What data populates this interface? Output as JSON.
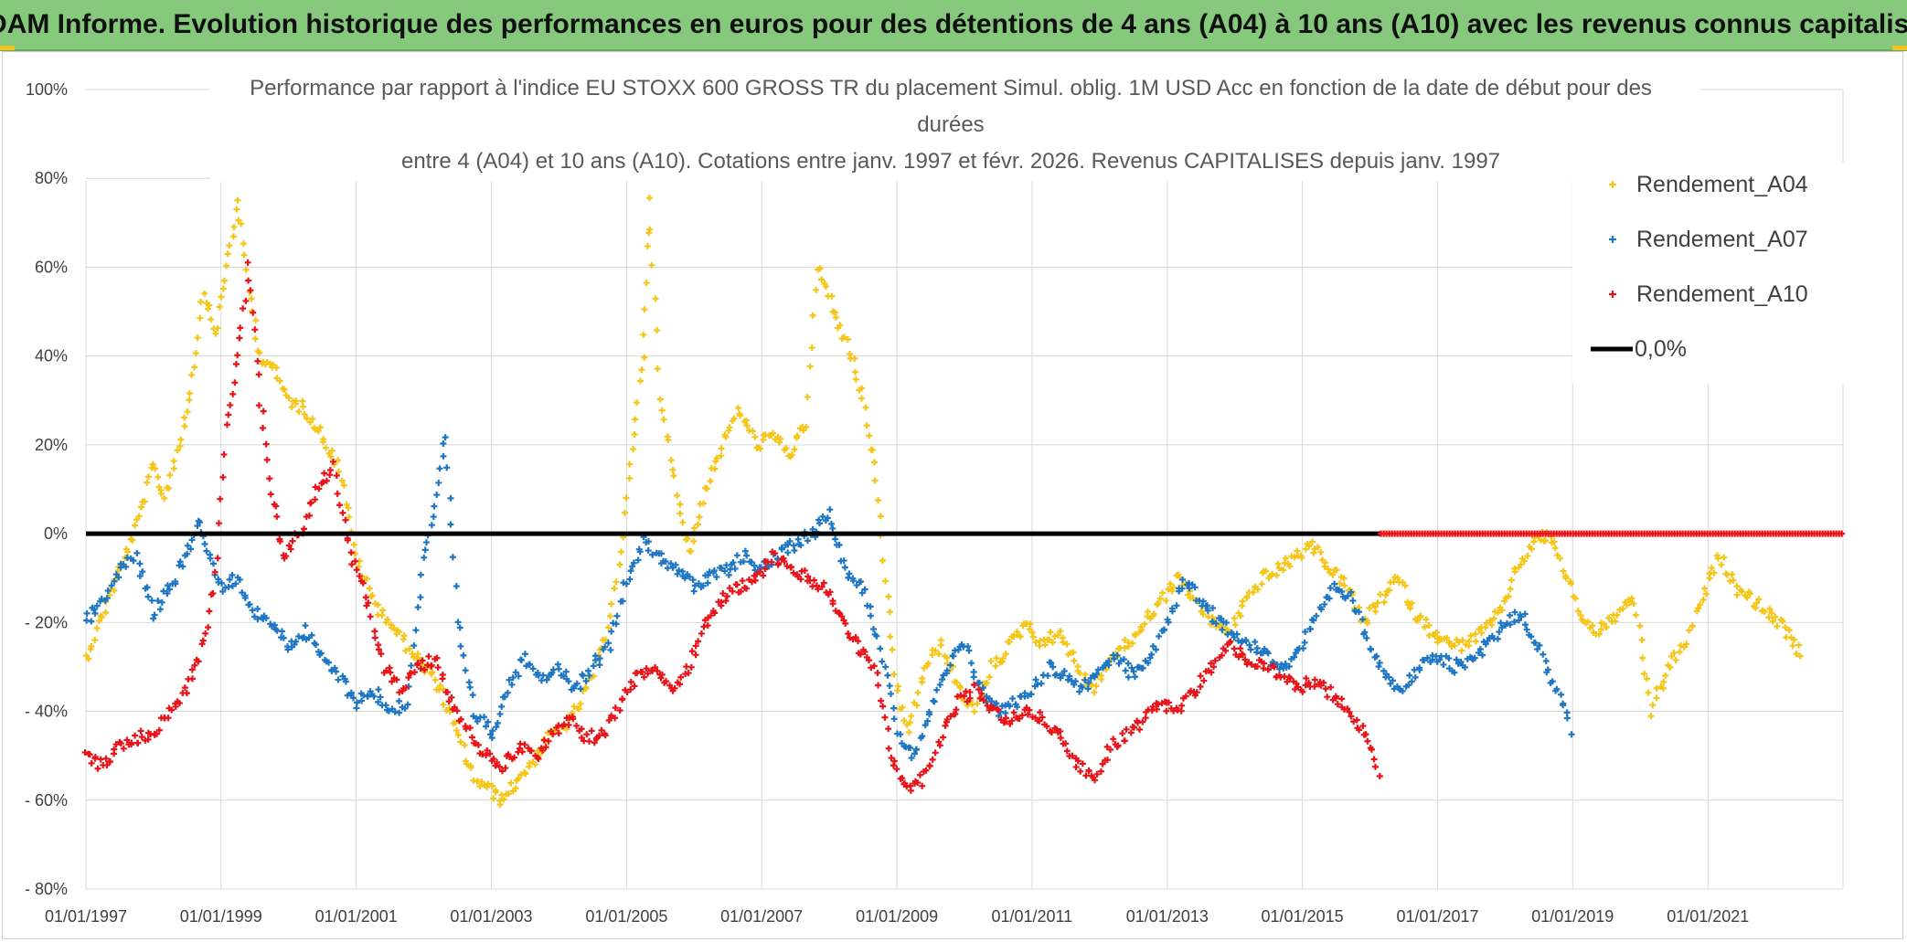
{
  "header": {
    "title": "ADAM Informe. Evolution historique des performances en euros pour des détentions de 4 ans (A04) à 10 ans (A10) avec les revenus connus capitalisés"
  },
  "colors": {
    "header_bg": "#86c97d",
    "a04": "#f5c518",
    "a07": "#1f77c4",
    "a10": "#e8141a",
    "zero": "#000000",
    "grid": "#d9d9d9"
  },
  "chart_data": {
    "type": "scatter",
    "title_lines": [
      "Performance par rapport à l'indice EU STOXX 600 GROSS TR  du placement Simul. oblig. 1M USD Acc en fonction de la date de début pour des",
      "durées",
      "entre 4 (A04) et 10 ans (A10). Cotations entre janv. 1997 et févr. 2026. Revenus CAPITALISES depuis janv. 1997"
    ],
    "x_ticks": [
      "01/01/1997",
      "01/01/1999",
      "01/01/2001",
      "01/01/2003",
      "01/01/2005",
      "01/01/2007",
      "01/01/2009",
      "01/01/2011",
      "01/01/2013",
      "01/01/2015",
      "01/01/2017",
      "01/01/2019",
      "01/01/2021"
    ],
    "y_ticks": [
      "100%",
      "80%",
      "60%",
      "40%",
      "20%",
      "0%",
      "- 20%",
      "- 40%",
      "- 60%",
      "- 80%"
    ],
    "xlim": [
      "1997-01-01",
      "2023-01-01"
    ],
    "ylim": [
      -80,
      100
    ],
    "y_unit": "%",
    "grid": true,
    "legend_position": "top-right",
    "series": [
      {
        "name": "Rendement_A04",
        "color": "#f5c518",
        "marker": "plus",
        "points": [
          [
            "1997-01",
            -28
          ],
          [
            "1997-04",
            -18
          ],
          [
            "1997-07",
            -8
          ],
          [
            "1997-10",
            2
          ],
          [
            "1998-01",
            15
          ],
          [
            "1998-03",
            8
          ],
          [
            "1998-06",
            22
          ],
          [
            "1998-08",
            35
          ],
          [
            "1998-10",
            55
          ],
          [
            "1998-12",
            45
          ],
          [
            "1999-02",
            60
          ],
          [
            "1999-04",
            75
          ],
          [
            "1999-06",
            55
          ],
          [
            "1999-08",
            40
          ],
          [
            "1999-10",
            38
          ],
          [
            "2000-01",
            30
          ],
          [
            "2000-04",
            28
          ],
          [
            "2000-07",
            22
          ],
          [
            "2000-10",
            15
          ],
          [
            "2001-01",
            -5
          ],
          [
            "2001-04",
            -15
          ],
          [
            "2001-07",
            -20
          ],
          [
            "2001-10",
            -25
          ],
          [
            "2002-01",
            -30
          ],
          [
            "2002-04",
            -35
          ],
          [
            "2002-07",
            -45
          ],
          [
            "2002-10",
            -55
          ],
          [
            "2003-01",
            -58
          ],
          [
            "2003-03",
            -60
          ],
          [
            "2003-06",
            -55
          ],
          [
            "2003-09",
            -50
          ],
          [
            "2003-12",
            -45
          ],
          [
            "2004-03",
            -42
          ],
          [
            "2004-06",
            -35
          ],
          [
            "2004-09",
            -25
          ],
          [
            "2004-12",
            -5
          ],
          [
            "2005-02",
            20
          ],
          [
            "2005-04",
            40
          ],
          [
            "2005-05",
            75
          ],
          [
            "2005-07",
            30
          ],
          [
            "2005-10",
            10
          ],
          [
            "2005-12",
            -5
          ],
          [
            "2006-03",
            10
          ],
          [
            "2006-06",
            20
          ],
          [
            "2006-09",
            28
          ],
          [
            "2006-12",
            20
          ],
          [
            "2007-03",
            22
          ],
          [
            "2007-06",
            18
          ],
          [
            "2007-09",
            25
          ],
          [
            "2007-11",
            60
          ],
          [
            "2008-02",
            50
          ],
          [
            "2008-05",
            40
          ],
          [
            "2008-07",
            30
          ],
          [
            "2008-09",
            15
          ],
          [
            "2008-11",
            -10
          ],
          [
            "2009-01",
            -35
          ],
          [
            "2009-03",
            -45
          ],
          [
            "2009-06",
            -30
          ],
          [
            "2009-09",
            -25
          ],
          [
            "2009-12",
            -35
          ],
          [
            "2010-03",
            -40
          ],
          [
            "2010-06",
            -30
          ],
          [
            "2010-09",
            -25
          ],
          [
            "2010-12",
            -20
          ],
          [
            "2011-03",
            -25
          ],
          [
            "2011-06",
            -22
          ],
          [
            "2011-09",
            -30
          ],
          [
            "2011-12",
            -35
          ],
          [
            "2012-03",
            -28
          ],
          [
            "2012-06",
            -25
          ],
          [
            "2012-09",
            -20
          ],
          [
            "2012-12",
            -15
          ],
          [
            "2013-03",
            -10
          ],
          [
            "2013-06",
            -15
          ],
          [
            "2013-09",
            -20
          ],
          [
            "2013-12",
            -22
          ],
          [
            "2014-03",
            -15
          ],
          [
            "2014-06",
            -10
          ],
          [
            "2014-09",
            -8
          ],
          [
            "2014-12",
            -5
          ],
          [
            "2015-03",
            -3
          ],
          [
            "2015-06",
            -8
          ],
          [
            "2015-09",
            -12
          ],
          [
            "2015-12",
            -20
          ],
          [
            "2016-03",
            -15
          ],
          [
            "2016-06",
            -10
          ],
          [
            "2016-09",
            -18
          ],
          [
            "2016-12",
            -22
          ],
          [
            "2017-03",
            -25
          ],
          [
            "2017-06",
            -25
          ],
          [
            "2017-09",
            -22
          ],
          [
            "2017-12",
            -18
          ],
          [
            "2018-03",
            -8
          ],
          [
            "2018-06",
            -2
          ],
          [
            "2018-09",
            0
          ],
          [
            "2018-12",
            -10
          ],
          [
            "2019-03",
            -20
          ],
          [
            "2019-06",
            -22
          ],
          [
            "2019-09",
            -18
          ],
          [
            "2019-12",
            -15
          ],
          [
            "2020-03",
            -40
          ],
          [
            "2020-06",
            -30
          ],
          [
            "2020-09",
            -25
          ],
          [
            "2020-12",
            -15
          ],
          [
            "2021-03",
            -5
          ],
          [
            "2021-06",
            -12
          ],
          [
            "2021-09",
            -15
          ],
          [
            "2021-12",
            -18
          ],
          [
            "2022-03",
            -22
          ],
          [
            "2022-06",
            -28
          ]
        ]
      },
      {
        "name": "Rendement_A07",
        "color": "#1f77c4",
        "marker": "plus",
        "points": [
          [
            "1997-01",
            -20
          ],
          [
            "1997-04",
            -15
          ],
          [
            "1997-07",
            -8
          ],
          [
            "1997-10",
            -5
          ],
          [
            "1998-01",
            -18
          ],
          [
            "1998-04",
            -12
          ],
          [
            "1998-07",
            -5
          ],
          [
            "1998-09",
            3
          ],
          [
            "1998-11",
            -5
          ],
          [
            "1999-01",
            -12
          ],
          [
            "1999-04",
            -10
          ],
          [
            "1999-07",
            -18
          ],
          [
            "1999-10",
            -20
          ],
          [
            "2000-01",
            -25
          ],
          [
            "2000-04",
            -22
          ],
          [
            "2000-07",
            -28
          ],
          [
            "2000-10",
            -32
          ],
          [
            "2001-01",
            -38
          ],
          [
            "2001-04",
            -35
          ],
          [
            "2001-07",
            -40
          ],
          [
            "2001-10",
            -38
          ],
          [
            "2002-01",
            -5
          ],
          [
            "2002-03",
            5
          ],
          [
            "2002-05",
            22
          ],
          [
            "2002-07",
            -20
          ],
          [
            "2002-10",
            -40
          ],
          [
            "2003-01",
            -45
          ],
          [
            "2003-04",
            -35
          ],
          [
            "2003-07",
            -28
          ],
          [
            "2003-10",
            -32
          ],
          [
            "2004-01",
            -30
          ],
          [
            "2004-04",
            -35
          ],
          [
            "2004-07",
            -30
          ],
          [
            "2004-10",
            -25
          ],
          [
            "2005-01",
            -10
          ],
          [
            "2005-04",
            -2
          ],
          [
            "2005-07",
            -5
          ],
          [
            "2005-10",
            -8
          ],
          [
            "2006-01",
            -12
          ],
          [
            "2006-04",
            -10
          ],
          [
            "2006-07",
            -8
          ],
          [
            "2006-10",
            -5
          ],
          [
            "2007-01",
            -8
          ],
          [
            "2007-04",
            -5
          ],
          [
            "2007-07",
            -2
          ],
          [
            "2007-10",
            0
          ],
          [
            "2008-01",
            5
          ],
          [
            "2008-04",
            -8
          ],
          [
            "2008-07",
            -12
          ],
          [
            "2008-10",
            -25
          ],
          [
            "2009-01",
            -45
          ],
          [
            "2009-04",
            -50
          ],
          [
            "2009-07",
            -40
          ],
          [
            "2009-10",
            -30
          ],
          [
            "2010-01",
            -25
          ],
          [
            "2010-04",
            -35
          ],
          [
            "2010-07",
            -40
          ],
          [
            "2010-10",
            -38
          ],
          [
            "2011-01",
            -35
          ],
          [
            "2011-04",
            -30
          ],
          [
            "2011-07",
            -32
          ],
          [
            "2011-10",
            -35
          ],
          [
            "2012-01",
            -30
          ],
          [
            "2012-04",
            -28
          ],
          [
            "2012-07",
            -32
          ],
          [
            "2012-10",
            -28
          ],
          [
            "2013-01",
            -20
          ],
          [
            "2013-04",
            -10
          ],
          [
            "2013-07",
            -15
          ],
          [
            "2013-10",
            -20
          ],
          [
            "2014-01",
            -22
          ],
          [
            "2014-04",
            -25
          ],
          [
            "2014-07",
            -28
          ],
          [
            "2014-10",
            -30
          ],
          [
            "2015-01",
            -25
          ],
          [
            "2015-04",
            -18
          ],
          [
            "2015-07",
            -12
          ],
          [
            "2015-10",
            -15
          ],
          [
            "2016-01",
            -25
          ],
          [
            "2016-04",
            -32
          ],
          [
            "2016-07",
            -35
          ],
          [
            "2016-10",
            -30
          ],
          [
            "2017-01",
            -28
          ],
          [
            "2017-04",
            -30
          ],
          [
            "2017-07",
            -28
          ],
          [
            "2017-10",
            -25
          ],
          [
            "2018-01",
            -20
          ],
          [
            "2018-04",
            -18
          ],
          [
            "2018-07",
            -25
          ],
          [
            "2018-10",
            -35
          ],
          [
            "2019-01",
            -45
          ]
        ]
      },
      {
        "name": "Rendement_A10",
        "color": "#e8141a",
        "marker": "plus",
        "points": [
          [
            "1997-01",
            -50
          ],
          [
            "1997-04",
            -52
          ],
          [
            "1997-07",
            -48
          ],
          [
            "1997-10",
            -46
          ],
          [
            "1998-01",
            -45
          ],
          [
            "1998-04",
            -40
          ],
          [
            "1998-07",
            -35
          ],
          [
            "1998-10",
            -25
          ],
          [
            "1998-12",
            -10
          ],
          [
            "1999-02",
            25
          ],
          [
            "1999-04",
            40
          ],
          [
            "1999-06",
            60
          ],
          [
            "1999-08",
            30
          ],
          [
            "1999-10",
            10
          ],
          [
            "1999-12",
            -5
          ],
          [
            "2000-03",
            0
          ],
          [
            "2000-06",
            10
          ],
          [
            "2000-09",
            15
          ],
          [
            "2000-12",
            -5
          ],
          [
            "2001-03",
            -15
          ],
          [
            "2001-06",
            -30
          ],
          [
            "2001-09",
            -35
          ],
          [
            "2001-12",
            -30
          ],
          [
            "2002-03",
            -28
          ],
          [
            "2002-06",
            -38
          ],
          [
            "2002-09",
            -45
          ],
          [
            "2002-12",
            -50
          ],
          [
            "2003-03",
            -52
          ],
          [
            "2003-06",
            -48
          ],
          [
            "2003-09",
            -50
          ],
          [
            "2003-12",
            -45
          ],
          [
            "2004-03",
            -42
          ],
          [
            "2004-06",
            -46
          ],
          [
            "2004-09",
            -45
          ],
          [
            "2004-12",
            -38
          ],
          [
            "2005-03",
            -32
          ],
          [
            "2005-06",
            -30
          ],
          [
            "2005-09",
            -35
          ],
          [
            "2005-12",
            -30
          ],
          [
            "2006-03",
            -20
          ],
          [
            "2006-06",
            -15
          ],
          [
            "2006-09",
            -12
          ],
          [
            "2006-12",
            -10
          ],
          [
            "2007-03",
            -5
          ],
          [
            "2007-06",
            -8
          ],
          [
            "2007-09",
            -10
          ],
          [
            "2007-12",
            -12
          ],
          [
            "2008-03",
            -18
          ],
          [
            "2008-06",
            -25
          ],
          [
            "2008-09",
            -30
          ],
          [
            "2008-12",
            -50
          ],
          [
            "2009-03",
            -58
          ],
          [
            "2009-06",
            -55
          ],
          [
            "2009-09",
            -45
          ],
          [
            "2009-12",
            -38
          ],
          [
            "2010-03",
            -35
          ],
          [
            "2010-06",
            -40
          ],
          [
            "2010-09",
            -42
          ],
          [
            "2010-12",
            -40
          ],
          [
            "2011-03",
            -42
          ],
          [
            "2011-06",
            -45
          ],
          [
            "2011-09",
            -52
          ],
          [
            "2011-12",
            -55
          ],
          [
            "2012-03",
            -48
          ],
          [
            "2012-06",
            -45
          ],
          [
            "2012-09",
            -42
          ],
          [
            "2012-12",
            -38
          ],
          [
            "2013-03",
            -40
          ],
          [
            "2013-06",
            -35
          ],
          [
            "2013-09",
            -30
          ],
          [
            "2013-12",
            -25
          ],
          [
            "2014-03",
            -28
          ],
          [
            "2014-06",
            -30
          ],
          [
            "2014-09",
            -32
          ],
          [
            "2014-12",
            -35
          ],
          [
            "2015-03",
            -33
          ],
          [
            "2015-06",
            -36
          ],
          [
            "2015-09",
            -40
          ],
          [
            "2015-12",
            -45
          ],
          [
            "2016-03",
            -55
          ]
        ]
      },
      {
        "name": "0,0%",
        "color": "#000000",
        "marker": "line",
        "points": [
          [
            "1997-01",
            0
          ],
          [
            "2016-03",
            0
          ]
        ]
      }
    ]
  }
}
